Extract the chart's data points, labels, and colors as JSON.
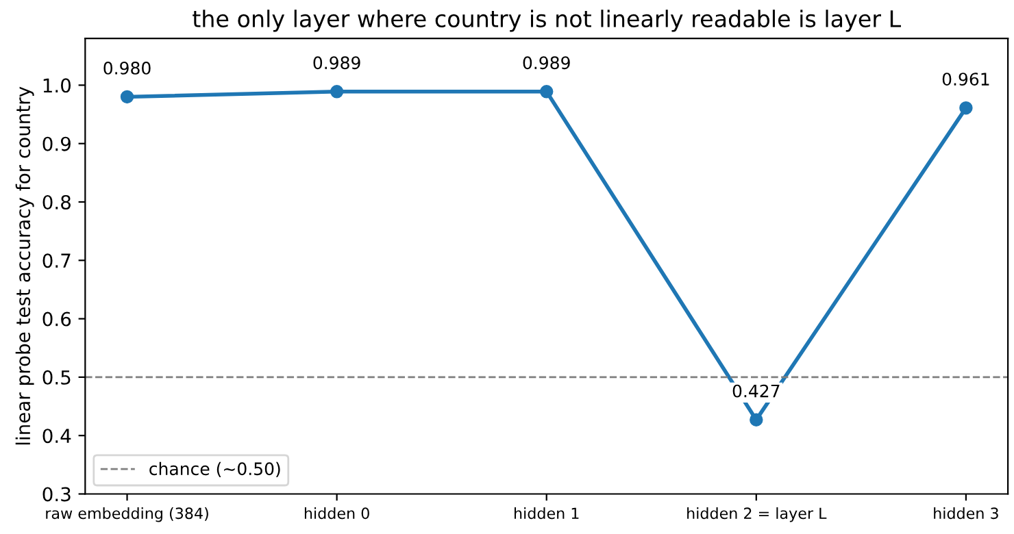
{
  "chart_data": {
    "type": "line",
    "title": "the only layer where country is not linearly readable is layer L",
    "ylabel": "linear probe test accuracy for country",
    "categories": [
      "raw embedding (384)",
      "hidden 0",
      "hidden 1",
      "hidden 2 = layer L",
      "hidden 3"
    ],
    "series": [
      {
        "color": "#1f77b4",
        "values": [
          0.98,
          0.989,
          0.989,
          0.427,
          0.961
        ],
        "value_labels": [
          "0.980",
          "0.989",
          "0.989",
          "0.427",
          "0.961"
        ]
      }
    ],
    "ylim": [
      0.3,
      1.08
    ],
    "yticks": [
      0.3,
      0.4,
      0.5,
      0.6,
      0.7,
      0.8,
      0.9,
      {
        "value": 1.0,
        "label": "1.0"
      }
    ],
    "ref_lines": [
      {
        "axis": "y",
        "value": 0.5,
        "label": "chance (~0.50)",
        "color": "#808080",
        "line_style": "dashed"
      }
    ],
    "legend": "lower left",
    "marker": "circle",
    "line_style": "solid"
  }
}
